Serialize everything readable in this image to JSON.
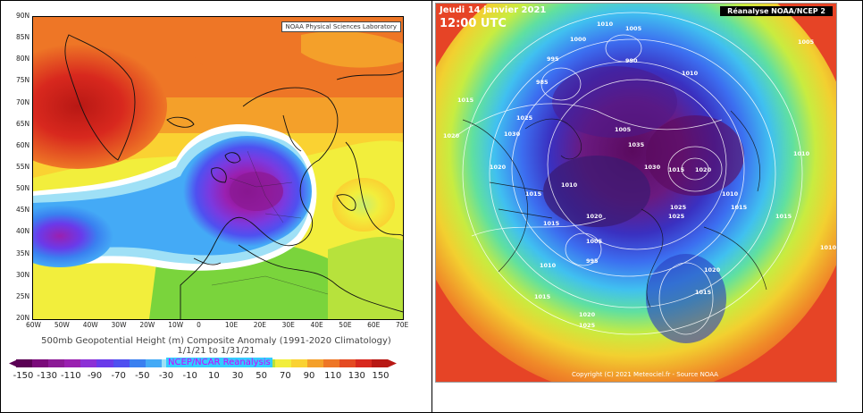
{
  "left_panel": {
    "credit": "NOAA Physical Sciences Laboratory",
    "caption_line1": "500mb Geopotential Height (m) Composite Anomaly (1991-2020 Climatology)",
    "caption_line2": "1/1/21 to 1/31/21",
    "colorbar_source": "NCEP/NCAR Reanalysis",
    "lat_labels": [
      "90N",
      "85N",
      "80N",
      "75N",
      "70N",
      "65N",
      "60N",
      "55N",
      "50N",
      "45N",
      "40N",
      "35N",
      "30N",
      "25N",
      "20N"
    ],
    "lon_labels": [
      "60W",
      "50W",
      "40W",
      "30W",
      "20W",
      "10W",
      "0",
      "10E",
      "20E",
      "30E",
      "40E",
      "50E",
      "60E",
      "70E"
    ],
    "colorbar_ticks": [
      "-150",
      "-130",
      "-110",
      "-90",
      "-70",
      "-50",
      "-30",
      "-10",
      "10",
      "30",
      "50",
      "70",
      "90",
      "110",
      "130",
      "150"
    ],
    "colorbar_colors": [
      "#5a0054",
      "#7a0a7a",
      "#8c1a96",
      "#9a20b0",
      "#8c30d6",
      "#6a3aea",
      "#4f50f0",
      "#3a80f0",
      "#44aaf6",
      "#9fe0f6",
      "#ffffff",
      "#ffffff",
      "#c8ee70",
      "#7ad43c",
      "#3cbf2c",
      "#b7e23c",
      "#f2ee3c",
      "#fad232",
      "#f4a02a",
      "#ee7626",
      "#e44a22",
      "#d8281e",
      "#b81814"
    ]
  },
  "right_panel": {
    "date": "Jeudi 14 janvier 2021",
    "time": "12:00 UTC",
    "title": "Réanalyse NOAA/NCEP 2",
    "copyright": "Copyright (C) 2021 Meteociel.fr - Source NOAA",
    "pressure_labels": [
      "1010",
      "1005",
      "1000",
      "995",
      "990",
      "985",
      "1015",
      "1020",
      "1025",
      "1030",
      "1035",
      "1005",
      "1010",
      "1015",
      "1020",
      "1025",
      "1030",
      "1010",
      "1015",
      "1020",
      "1005",
      "995",
      "1010",
      "1015",
      "1020",
      "1025",
      "1010",
      "1015",
      "1020",
      "1015",
      "1010",
      "1005",
      "1015",
      "1020",
      "1025",
      "1015",
      "1010"
    ]
  }
}
